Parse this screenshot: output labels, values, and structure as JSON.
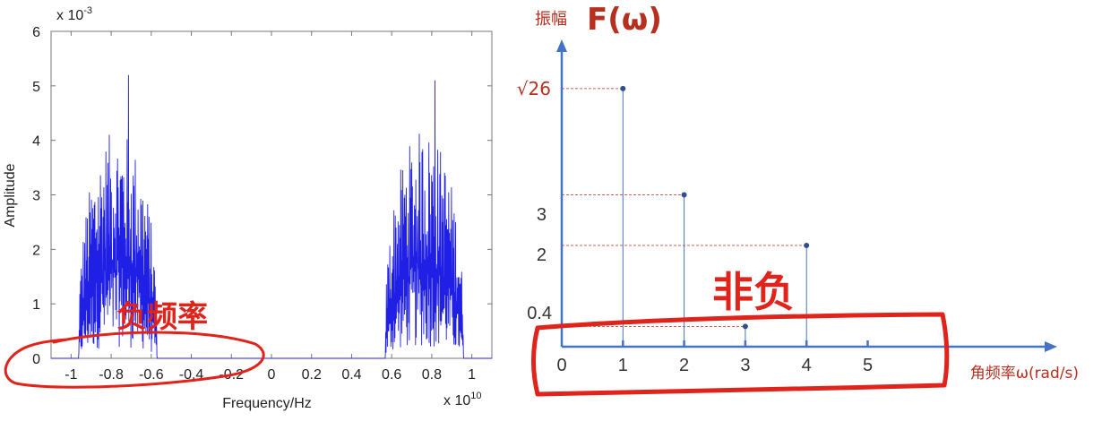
{
  "chart_data": [
    {
      "type": "line",
      "xlabel": "Frequency/Hz",
      "ylabel": "Amplitude",
      "y_exponent_label": "x 10",
      "y_exponent": "-3",
      "x_exponent_label": "x 10",
      "x_exponent": "10",
      "xlim": [
        -1.1,
        1.1
      ],
      "ylim": [
        0,
        6
      ],
      "x_ticks": [
        "-1",
        "-0.8",
        "-0.6",
        "-0.4",
        "-0.2",
        "0",
        "0.2",
        "0.4",
        "0.6",
        "0.8",
        "1"
      ],
      "y_ticks": [
        "0",
        "1",
        "2",
        "3",
        "4",
        "5",
        "6"
      ],
      "bands": [
        {
          "x_start": -0.97,
          "x_end": -0.56,
          "peak": 5.2,
          "typical_max": 4.7
        },
        {
          "x_start": 0.56,
          "x_end": 0.97,
          "peak": 5.1,
          "typical_max": 4.7
        }
      ],
      "series_color": "#1f1fe6",
      "annotation": "负频率"
    },
    {
      "type": "stem",
      "title_prefix": "振幅",
      "title": "F(ω)",
      "xlabel": "角频率ω(rad/s)",
      "x_ticks": [
        "0",
        "1",
        "2",
        "3",
        "4",
        "5"
      ],
      "y_tick_labels": [
        "√26",
        "3",
        "2",
        "0.4"
      ],
      "points": [
        {
          "x": 1,
          "y": 5.099
        },
        {
          "x": 2,
          "y": 3
        },
        {
          "x": 3,
          "y": 0.4
        },
        {
          "x": 4,
          "y": 2
        }
      ],
      "axis_color": "#4472c4",
      "annotation": "非负"
    }
  ]
}
